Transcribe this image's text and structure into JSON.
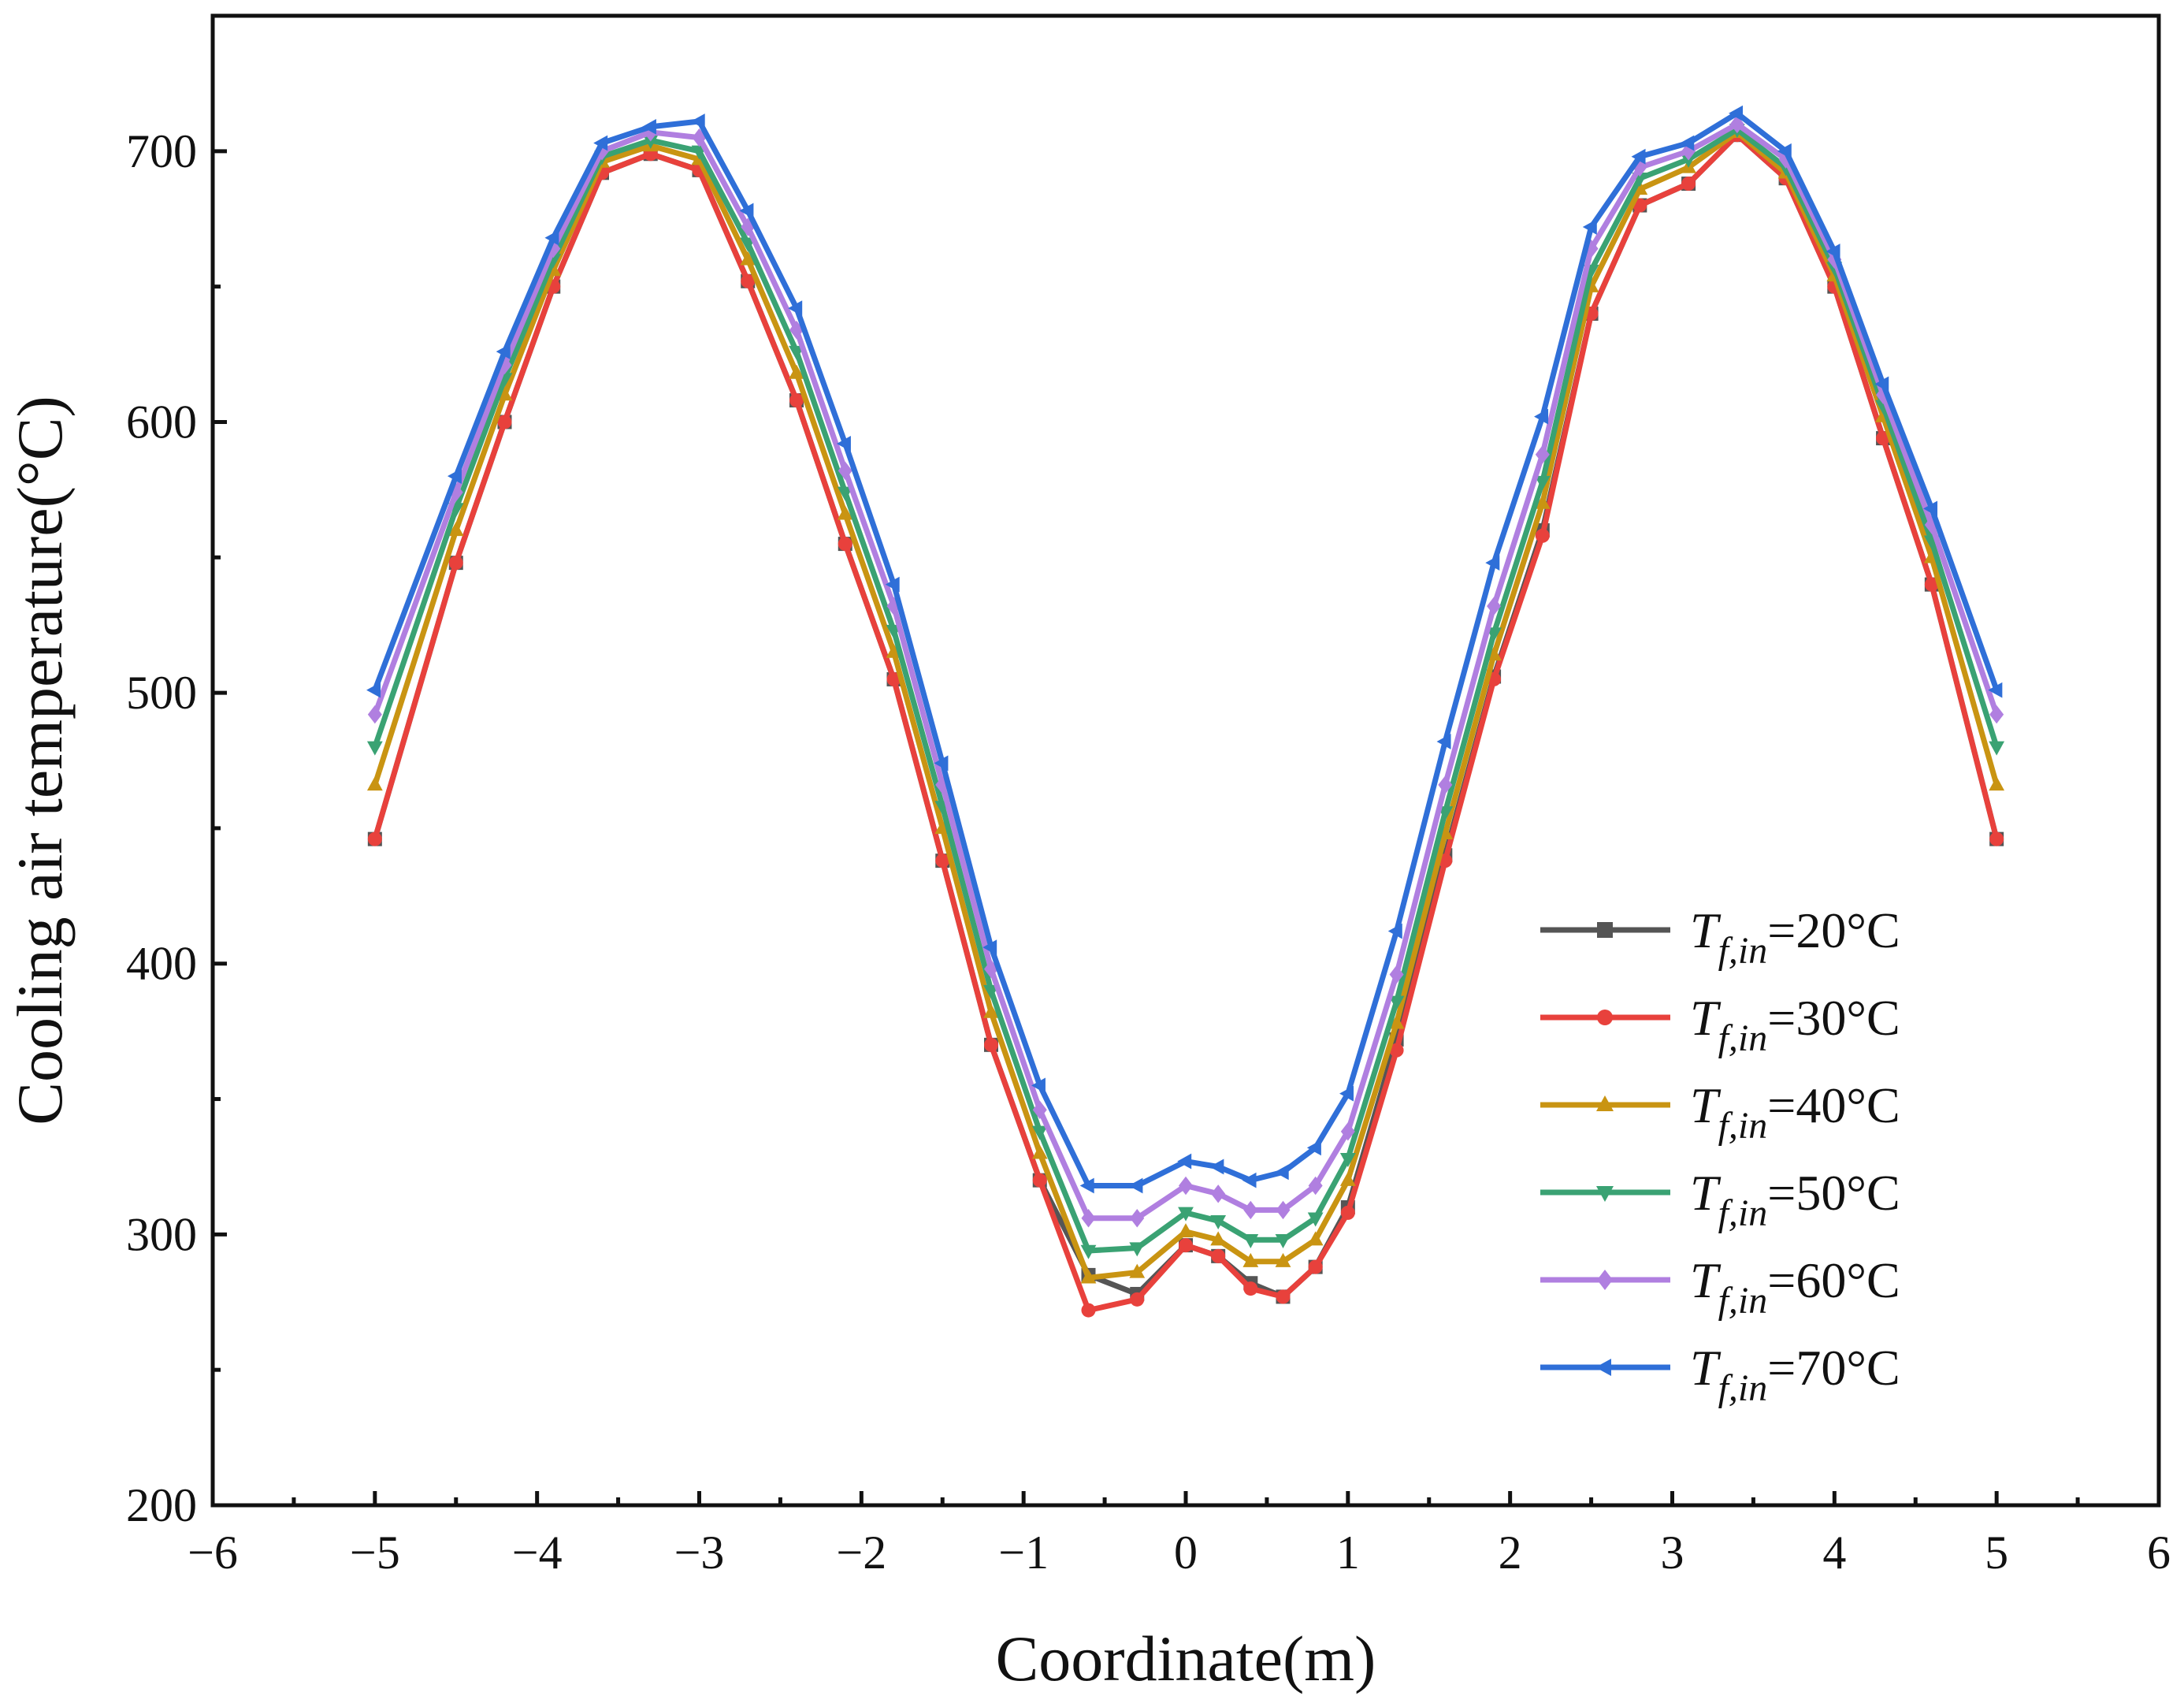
{
  "chart_data": {
    "type": "line",
    "title": "",
    "xlabel": "Coordinate(m)",
    "ylabel": "Cooling air temperature(°C)",
    "xlim": [
      -6,
      6
    ],
    "ylim": [
      200,
      750
    ],
    "xticks": [
      -6,
      -5,
      -4,
      -3,
      -2,
      -1,
      0,
      1,
      2,
      3,
      4,
      5,
      6
    ],
    "xtick_labels": [
      "−6",
      "−5",
      "−4",
      "−3",
      "−2",
      "−1",
      "0",
      "1",
      "2",
      "3",
      "4",
      "5",
      "6"
    ],
    "yticks": [
      200,
      300,
      400,
      500,
      600,
      700
    ],
    "ytick_labels": [
      "200",
      "300",
      "400",
      "500",
      "600",
      "700"
    ],
    "grid": false,
    "legend_position": "bottom-right",
    "x": [
      -5.0,
      -4.5,
      -4.2,
      -3.9,
      -3.6,
      -3.3,
      -3.0,
      -2.7,
      -2.4,
      -2.1,
      -1.8,
      -1.5,
      -1.2,
      -0.9,
      -0.6,
      -0.3,
      0.0,
      0.2,
      0.4,
      0.6,
      0.8,
      1.0,
      1.3,
      1.6,
      1.9,
      2.2,
      2.5,
      2.8,
      3.1,
      3.4,
      3.7,
      4.0,
      4.3,
      4.6,
      5.0
    ],
    "series": [
      {
        "name": "20°C",
        "label_prefix": "T",
        "label_subscript": "f,in",
        "label_suffix": "=20°C",
        "color": "#555555",
        "marker": "square",
        "values": [
          446,
          548,
          600,
          650,
          692,
          699,
          693,
          652,
          608,
          555,
          505,
          438,
          370,
          320,
          285,
          278,
          296,
          292,
          282,
          277,
          288,
          310,
          372,
          440,
          506,
          560,
          640,
          680,
          688,
          706,
          690,
          650,
          594,
          540,
          446
        ]
      },
      {
        "name": "30°C",
        "label_prefix": "T",
        "label_subscript": "f,in",
        "label_suffix": "=30°C",
        "color": "#e8413c",
        "marker": "circle",
        "values": [
          446,
          548,
          600,
          650,
          692,
          699,
          693,
          652,
          608,
          555,
          505,
          438,
          370,
          320,
          272,
          276,
          296,
          292,
          280,
          277,
          288,
          308,
          368,
          438,
          505,
          558,
          640,
          680,
          688,
          706,
          690,
          650,
          594,
          540,
          446
        ]
      },
      {
        "name": "40°C",
        "label_prefix": "T",
        "label_subscript": "f,in",
        "label_suffix": "=40°C",
        "color": "#c99412",
        "marker": "triangle-up",
        "values": [
          466,
          560,
          610,
          656,
          696,
          702,
          697,
          660,
          618,
          566,
          515,
          450,
          382,
          330,
          284,
          286,
          301,
          298,
          290,
          290,
          298,
          320,
          378,
          448,
          514,
          570,
          650,
          686,
          694,
          707,
          692,
          654,
          602,
          550,
          466
        ]
      },
      {
        "name": "50°C",
        "label_prefix": "T",
        "label_subscript": "f,in",
        "label_suffix": "=50°C",
        "color": "#3aa273",
        "marker": "triangle-down",
        "values": [
          480,
          568,
          616,
          660,
          698,
          704,
          700,
          666,
          626,
          574,
          523,
          458,
          390,
          338,
          294,
          295,
          308,
          305,
          298,
          298,
          306,
          328,
          386,
          456,
          522,
          578,
          656,
          690,
          697,
          708,
          694,
          657,
          606,
          556,
          480
        ]
      },
      {
        "name": "60°C",
        "label_prefix": "T",
        "label_subscript": "f,in",
        "label_suffix": "=60°C",
        "color": "#b07fe0",
        "marker": "diamond",
        "values": [
          492,
          574,
          621,
          664,
          700,
          707,
          705,
          672,
          634,
          582,
          532,
          466,
          398,
          346,
          306,
          306,
          318,
          315,
          309,
          309,
          318,
          338,
          396,
          466,
          532,
          588,
          664,
          694,
          700,
          710,
          697,
          660,
          610,
          562,
          492
        ]
      },
      {
        "name": "70°C",
        "label_prefix": "T",
        "label_subscript": "f,in",
        "label_suffix": "=70°C",
        "color": "#2f6fd8",
        "marker": "triangle-left",
        "values": [
          501,
          580,
          626,
          668,
          703,
          709,
          711,
          678,
          642,
          592,
          540,
          474,
          406,
          355,
          318,
          318,
          327,
          325,
          320,
          323,
          332,
          352,
          412,
          482,
          548,
          602,
          672,
          698,
          703,
          714,
          700,
          663,
          614,
          568,
          501
        ]
      }
    ]
  }
}
